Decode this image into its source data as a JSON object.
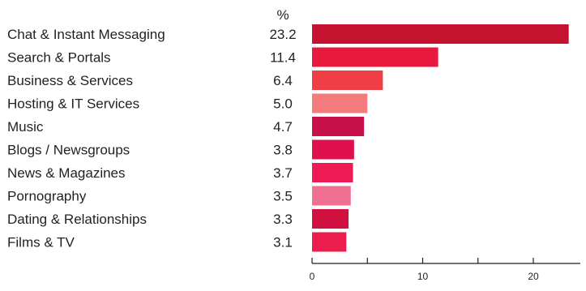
{
  "chart_data": {
    "type": "bar",
    "orientation": "horizontal",
    "value_header": "%",
    "categories": [
      "Chat & Instant Messaging",
      "Search & Portals",
      "Business & Services",
      "Hosting & IT Services",
      "Music",
      "Blogs / Newsgroups",
      "News & Magazines",
      "Pornography",
      "Dating & Relationships",
      "Films & TV"
    ],
    "values": [
      23.2,
      11.4,
      6.4,
      5.0,
      4.7,
      3.8,
      3.7,
      3.5,
      3.3,
      3.1
    ],
    "value_labels": [
      "23.2",
      "11.4",
      "6.4",
      "5.0",
      "4.7",
      "3.8",
      "3.7",
      "3.5",
      "3.3",
      "3.1"
    ],
    "bar_colors": [
      "#c4122f",
      "#e8193c",
      "#ef3e45",
      "#f47a7c",
      "#c8104a",
      "#e0104f",
      "#ef1a55",
      "#f07092",
      "#d0103f",
      "#ec1c4c"
    ],
    "xlim": [
      0,
      24
    ],
    "x_ticks": [
      0,
      5,
      10,
      15,
      20
    ],
    "x_tick_labels": [
      "0",
      "",
      "10",
      "",
      "20"
    ],
    "grid": false,
    "xlabel": "",
    "ylabel": "",
    "title": ""
  }
}
